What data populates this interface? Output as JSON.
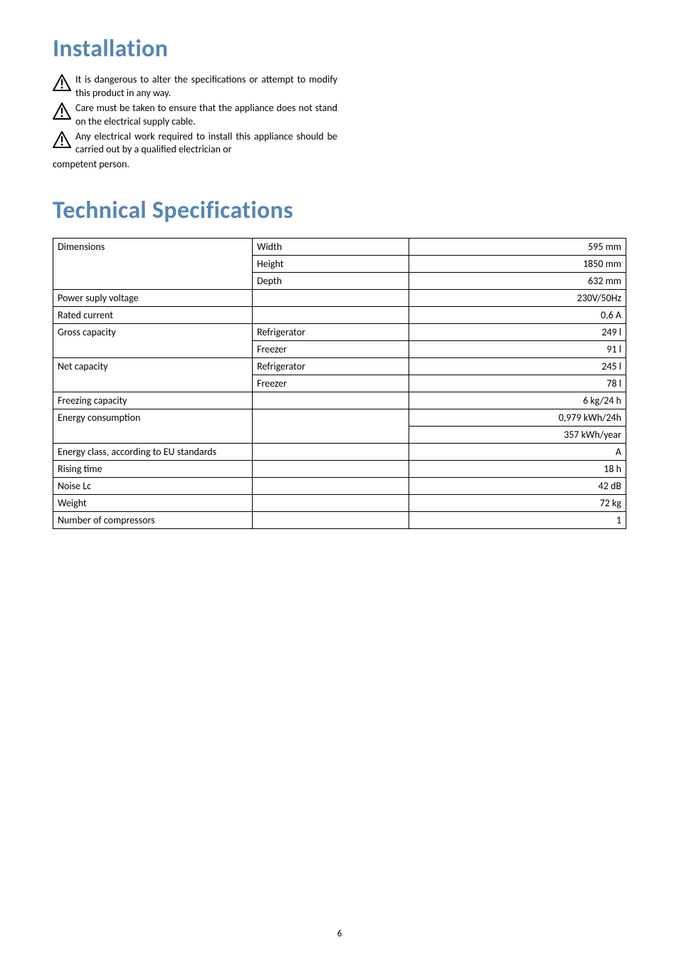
{
  "headings": {
    "installation": "Installation",
    "technical": "Technical Specifications"
  },
  "warnings": [
    "It is dangerous to alter the specifications or attempt to modify this product in any way.",
    "Care must be taken to ensure that the appliance does not stand on the electrical supply cable.",
    "Any electrical work required to install this appliance should be carried out by a qualified electrician or"
  ],
  "warnings_trail": "competent person.",
  "icon": {
    "stroke": "#000000",
    "fill": "none",
    "size": 26
  },
  "table": {
    "rows": [
      {
        "c1": "Dimensions",
        "c2": "Width",
        "c3": "595 mm",
        "c1_rowspan": 3
      },
      {
        "c2": "Height",
        "c3": "1850 mm"
      },
      {
        "c2": "Depth",
        "c3": "632 mm"
      },
      {
        "c1": "Power suply voltage",
        "c2": "",
        "c3": "230V/50Hz"
      },
      {
        "c1": "Rated current",
        "c2": "",
        "c3": "0,6 A"
      },
      {
        "c1": "Gross capacity",
        "c2": "Refrigerator",
        "c3": "249 l",
        "c1_rowspan": 2
      },
      {
        "c2": "Freezer",
        "c3": "91 l"
      },
      {
        "c1": "Net capacity",
        "c2": "Refrigerator",
        "c3": "245 l",
        "c1_rowspan": 2
      },
      {
        "c2": "Freezer",
        "c3": "78 l"
      },
      {
        "c1": "Freezing capacity",
        "c2": "",
        "c3": "6 kg/24 h"
      },
      {
        "c1": "Energy consumption",
        "c2": "",
        "c3": "0,979 kWh/24h",
        "c1_rowspan": 2,
        "c2_rowspan": 2
      },
      {
        "c3": "357 kWh/year"
      },
      {
        "c1": "Energy class, according to EU standards",
        "c2": "",
        "c3": "A"
      },
      {
        "c1": "Rising time",
        "c2": "",
        "c3": "18 h"
      },
      {
        "c1": "Noise Lc",
        "c2": "",
        "c3": "42 dB"
      },
      {
        "c1": "Weight",
        "c2": "",
        "c3": "72 kg"
      },
      {
        "c1": "Number of compressors",
        "c2": "",
        "c3": "1"
      }
    ]
  },
  "page_number": "6"
}
